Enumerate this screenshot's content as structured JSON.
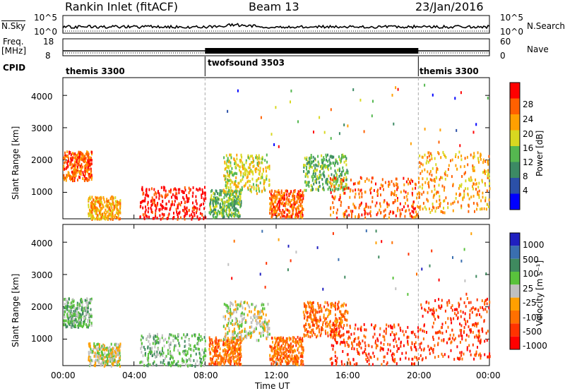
{
  "header": {
    "station": "Rankin Inlet (fitACF)",
    "beam": "Beam 13",
    "date": "23/Jan/2016"
  },
  "sky_panel": {
    "left_label": "N.Sky",
    "right_label": "N.Search",
    "ticks_left": [
      "10^5",
      "10^0"
    ],
    "ticks_right": [
      "10^5",
      "10^0"
    ]
  },
  "freq_panel": {
    "left_label_line1": "Freq.",
    "left_label_line2": "[MHz]",
    "right_label": "Nave",
    "ticks_left": [
      "18",
      "8"
    ],
    "ticks_right": [
      "60",
      "0"
    ]
  },
  "cpid_panel": {
    "label": "CPID",
    "segments": [
      {
        "name": "themis 3300",
        "start_h": 0,
        "end_h": 8
      },
      {
        "name": "twofsound 3503",
        "start_h": 8,
        "end_h": 20
      },
      {
        "name": "themis 3300",
        "start_h": 20,
        "end_h": 24
      }
    ]
  },
  "x_axis": {
    "label": "Time UT",
    "ticks": [
      "00:00",
      "04:00",
      "08:00",
      "12:00",
      "16:00",
      "20:00",
      "00:00"
    ],
    "range_hours": [
      0,
      24
    ]
  },
  "colors": {
    "power": [
      "#0000ff",
      "#2b50a8",
      "#3c8a64",
      "#55b850",
      "#d8d820",
      "#ffa000",
      "#ff6000",
      "#ff0000"
    ],
    "velocity": [
      "#2020c0",
      "#3a6fb0",
      "#3f8a5f",
      "#59c23c",
      "#c0c0c0",
      "#ffa000",
      "#ff7000",
      "#ff3300",
      "#ff0000"
    ]
  },
  "chart_data": [
    {
      "type": "heatmap",
      "panel": "power",
      "ylabel": "Slant Range [km]",
      "y_ticks": [
        "1000",
        "2000",
        "3000",
        "4000"
      ],
      "ylim": [
        180,
        4550
      ],
      "colorbar_label": "Power [dB]",
      "colorbar_ticks": [
        "4",
        "8",
        "12",
        "16",
        "20",
        "24",
        "28"
      ],
      "colorbar_range": [
        0,
        30
      ],
      "echo_regions": [
        {
          "t": [
            0.0,
            1.6
          ],
          "r": [
            1400,
            2300
          ],
          "level": 6
        },
        {
          "t": [
            1.4,
            3.2
          ],
          "r": [
            200,
            900
          ],
          "level": 5
        },
        {
          "t": [
            4.3,
            8.0
          ],
          "r": [
            200,
            1200
          ],
          "level": 7
        },
        {
          "t": [
            8.2,
            10.0
          ],
          "r": [
            250,
            1100
          ],
          "level": 3
        },
        {
          "t": [
            9.0,
            11.6
          ],
          "r": [
            1000,
            2200
          ],
          "level": 4
        },
        {
          "t": [
            11.6,
            13.5
          ],
          "r": [
            250,
            1100
          ],
          "level": 6
        },
        {
          "t": [
            13.5,
            16.0
          ],
          "r": [
            1100,
            2200
          ],
          "level": 3
        },
        {
          "t": [
            15.0,
            20.0
          ],
          "r": [
            250,
            1500
          ],
          "level": 6
        },
        {
          "t": [
            20.0,
            24.0
          ],
          "r": [
            400,
            2300
          ],
          "level": 5
        }
      ]
    },
    {
      "type": "heatmap",
      "panel": "velocity",
      "ylabel": "Slant Range [km]",
      "y_ticks": [
        "1000",
        "2000",
        "3000",
        "4000"
      ],
      "ylim": [
        180,
        4550
      ],
      "colorbar_label": "Velocity [m s⁻¹]",
      "colorbar_ticks": [
        "1000",
        "500",
        "100",
        "25",
        "-25",
        "-100",
        "-500",
        "-1000"
      ],
      "echo_regions": [
        {
          "t": [
            0.0,
            1.6
          ],
          "r": [
            1400,
            2300
          ],
          "class": 3
        },
        {
          "t": [
            1.4,
            3.2
          ],
          "r": [
            200,
            900
          ],
          "class": 4
        },
        {
          "t": [
            4.3,
            8.0
          ],
          "r": [
            200,
            1200
          ],
          "class": 3
        },
        {
          "t": [
            8.2,
            10.0
          ],
          "r": [
            250,
            1100
          ],
          "class": 6
        },
        {
          "t": [
            9.0,
            11.6
          ],
          "r": [
            1000,
            2200
          ],
          "class": 4
        },
        {
          "t": [
            11.6,
            13.5
          ],
          "r": [
            250,
            1100
          ],
          "class": 6
        },
        {
          "t": [
            13.5,
            16.0
          ],
          "r": [
            1100,
            2200
          ],
          "class": 6
        },
        {
          "t": [
            15.0,
            20.0
          ],
          "r": [
            250,
            1500
          ],
          "class": 7
        },
        {
          "t": [
            20.0,
            24.0
          ],
          "r": [
            400,
            2300
          ],
          "class": 7
        }
      ]
    }
  ]
}
